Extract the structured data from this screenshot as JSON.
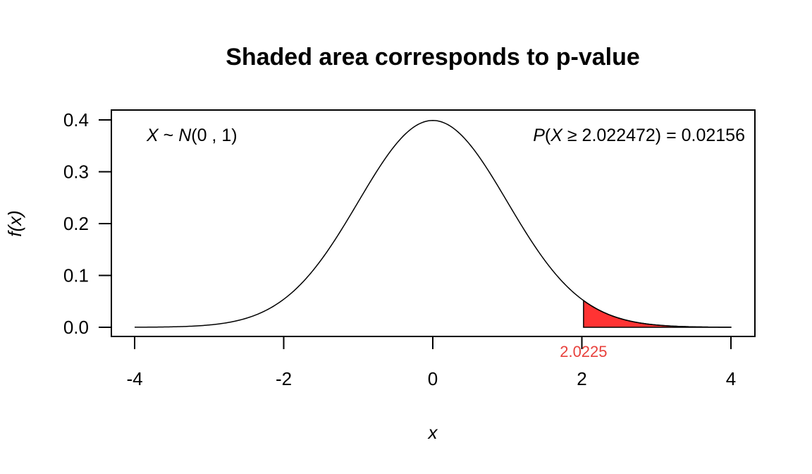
{
  "chart_data": {
    "type": "area",
    "title": "Shaded area corresponds to p-value",
    "xlabel": "x",
    "ylabel": "f(x)",
    "xlim": [
      -4,
      4
    ],
    "ylim": [
      0,
      0.4
    ],
    "x_ticks": [
      "-4",
      "-2",
      "0",
      "2",
      "4"
    ],
    "y_ticks": [
      "0.0",
      "0.1",
      "0.2",
      "0.3",
      "0.4"
    ],
    "distribution": {
      "family": "normal",
      "mean": 0,
      "sd": 1
    },
    "shaded_region": {
      "from": 2.022472,
      "to": 4,
      "tail": "upper"
    },
    "annotations": {
      "left": {
        "X": "X",
        "tilde": " ~ ",
        "N": "N",
        "params": "(0 , 1)"
      },
      "right": {
        "P": "P",
        "open": "(",
        "X": "X",
        "rest": " ≥ 2.022472) = 0.02156"
      },
      "cutoff_label": "2.0225"
    },
    "grid": false
  },
  "colors": {
    "curve": "#000000",
    "shade_fill": "#ff3333",
    "cutoff_label": "#e8413c",
    "axis": "#000000"
  }
}
